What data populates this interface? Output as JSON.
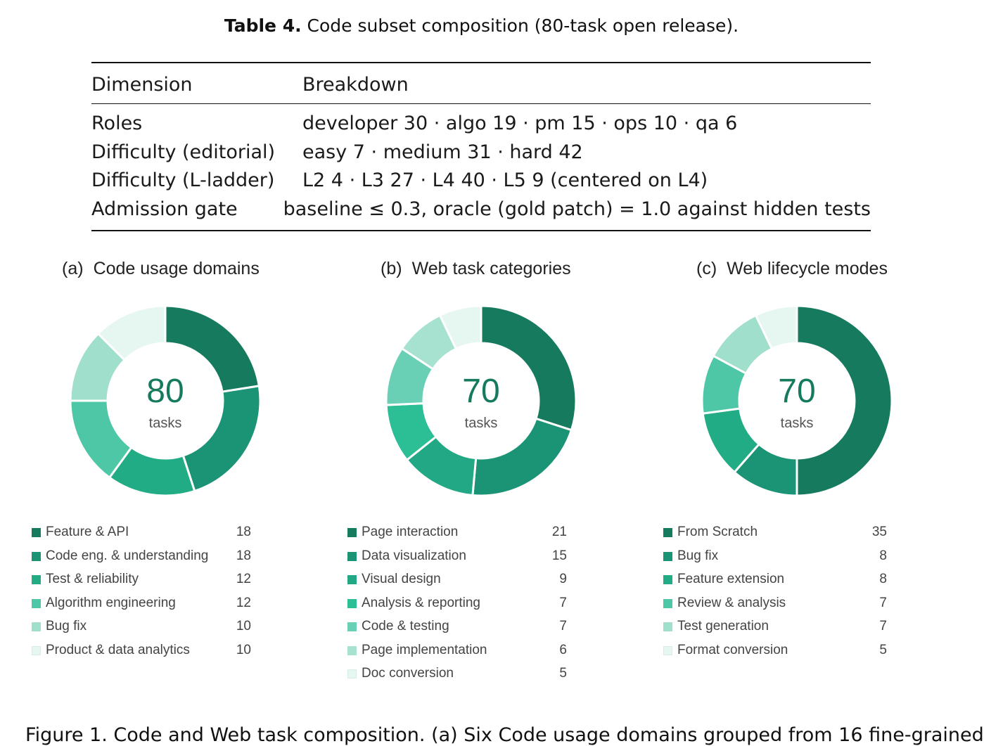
{
  "caption": {
    "bold": "Table 4.",
    "text": " Code subset composition (80-task open release)."
  },
  "table": {
    "header": [
      "Dimension",
      "Breakdown"
    ],
    "rows": [
      [
        "Roles",
        "developer 30 · algo 19 · pm 15 · ops 10 · qa 6"
      ],
      [
        "Difficulty (editorial)",
        "easy 7 · medium 31 · hard 42"
      ],
      [
        "Difficulty (L-ladder)",
        "L2 4 · L3 27 · L4 40 · L5 9 (centered on L4)"
      ],
      [
        "Admission gate",
        "baseline ≤ 0.3, oracle (gold patch) = 1.0 against hidden tests"
      ]
    ]
  },
  "panels": [
    {
      "label": "(a)",
      "title": "Code usage domains",
      "center_value": "80",
      "center_label": "tasks",
      "items": [
        {
          "name": "Feature & API",
          "value": 18,
          "color": "#167a5e"
        },
        {
          "name": "Code eng. & understanding",
          "value": 18,
          "color": "#1b9475"
        },
        {
          "name": "Test & reliability",
          "value": 12,
          "color": "#22ac86"
        },
        {
          "name": "Algorithm engineering",
          "value": 12,
          "color": "#4ec7a6"
        },
        {
          "name": "Bug fix",
          "value": 10,
          "color": "#a0dfcb"
        },
        {
          "name": "Product & data analytics",
          "value": 10,
          "color": "#e6f6f0"
        }
      ]
    },
    {
      "label": "(b)",
      "title": "Web task categories",
      "center_value": "70",
      "center_label": "tasks",
      "items": [
        {
          "name": "Page interaction",
          "value": 21,
          "color": "#167a5e"
        },
        {
          "name": "Data visualization",
          "value": 15,
          "color": "#1b9475"
        },
        {
          "name": "Visual design",
          "value": 9,
          "color": "#22a884"
        },
        {
          "name": "Analysis & reporting",
          "value": 7,
          "color": "#2cbf95"
        },
        {
          "name": "Code & testing",
          "value": 7,
          "color": "#6ad0b5"
        },
        {
          "name": "Page implementation",
          "value": 6,
          "color": "#a6e2cf"
        },
        {
          "name": "Doc conversion",
          "value": 5,
          "color": "#e6f6f0"
        }
      ]
    },
    {
      "label": "(c)",
      "title": "Web lifecycle modes",
      "center_value": "70",
      "center_label": "tasks",
      "items": [
        {
          "name": "From Scratch",
          "value": 35,
          "color": "#167a5e"
        },
        {
          "name": "Bug fix",
          "value": 8,
          "color": "#1b9475"
        },
        {
          "name": "Feature extension",
          "value": 8,
          "color": "#22ac86"
        },
        {
          "name": "Review & analysis",
          "value": 7,
          "color": "#4ec7a6"
        },
        {
          "name": "Test generation",
          "value": 7,
          "color": "#a0dfcb"
        },
        {
          "name": "Format conversion",
          "value": 5,
          "color": "#e6f6f0"
        }
      ]
    }
  ],
  "chart_data": [
    {
      "type": "pie",
      "title": "(a) Code usage domains",
      "categories": [
        "Feature & API",
        "Code eng. & understanding",
        "Test & reliability",
        "Algorithm engineering",
        "Bug fix",
        "Product & data analytics"
      ],
      "values": [
        18,
        18,
        12,
        12,
        10,
        10
      ],
      "center_text": "80 tasks"
    },
    {
      "type": "pie",
      "title": "(b) Web task categories",
      "categories": [
        "Page interaction",
        "Data visualization",
        "Visual design",
        "Analysis & reporting",
        "Code & testing",
        "Page implementation",
        "Doc conversion"
      ],
      "values": [
        21,
        15,
        9,
        7,
        7,
        6,
        5
      ],
      "center_text": "70 tasks"
    },
    {
      "type": "pie",
      "title": "(c) Web lifecycle modes",
      "categories": [
        "From Scratch",
        "Bug fix",
        "Feature extension",
        "Review & analysis",
        "Test generation",
        "Format conversion"
      ],
      "values": [
        35,
        8,
        8,
        7,
        7,
        5
      ],
      "center_text": "70 tasks"
    }
  ],
  "figure_caption_partial": "Figure 1. Code and Web task composition. (a) Six Code usage domains grouped from 16 fine-grained"
}
